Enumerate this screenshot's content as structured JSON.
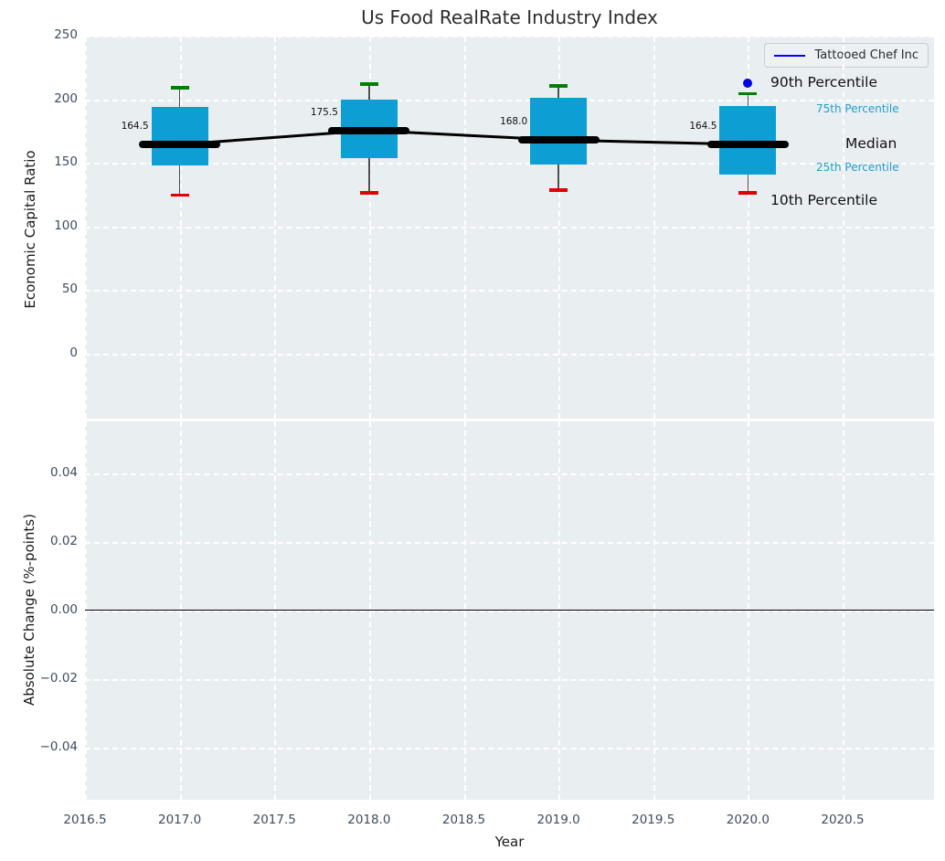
{
  "title": "Us Food RealRate Industry Index",
  "legend": {
    "label": "Tattooed Chef Inc",
    "line_color": "#0000ff"
  },
  "colors": {
    "box_fill": "#0d9ed4",
    "cap_top": "#008000",
    "cap_bottom": "#e00000",
    "whisker": "#4f4f4f",
    "median": "#000000",
    "series_line": "#000000",
    "highlight_point": "#0000e0",
    "percentile_text": "#1e9fce",
    "plot_background": "#e9eef1",
    "grid": "#ffffff",
    "tick_text": "#3e4b60"
  },
  "chart_data": [
    {
      "type": "boxplot+line",
      "title": "Us Food RealRate Industry Index",
      "xlabel": "Year",
      "ylabel": "Economic Capital Ratio",
      "series_name": "Tattooed Chef Inc",
      "legend_position": "upper right",
      "grid": true,
      "xlim": [
        2016.5,
        2021.0
      ],
      "ylim": [
        -49,
        252
      ],
      "xticks": [
        "2016.5",
        "2017.0",
        "2017.5",
        "2018.0",
        "2018.5",
        "2019.0",
        "2019.5",
        "2020.0",
        "2020.5"
      ],
      "xtick_values": [
        2016.5,
        2017.0,
        2017.5,
        2018.0,
        2018.5,
        2019.0,
        2019.5,
        2020.0,
        2020.5
      ],
      "yticks": [
        "0",
        "50",
        "100",
        "150",
        "200",
        "250"
      ],
      "ytick_values": [
        0,
        50,
        100,
        150,
        200,
        250
      ],
      "boxes": [
        {
          "year": 2017,
          "p10": 124.5,
          "q25": 148,
          "median": 164.5,
          "q75": 194,
          "p90": 209,
          "label": "164.5"
        },
        {
          "year": 2018,
          "p10": 126.5,
          "q25": 153.5,
          "median": 175.5,
          "q75": 200,
          "p90": 212,
          "label": "175.5"
        },
        {
          "year": 2019,
          "p10": 128.5,
          "q25": 149,
          "median": 168.0,
          "q75": 201,
          "p90": 210.5,
          "label": "168.0"
        },
        {
          "year": 2020,
          "p10": 126.5,
          "q25": 141,
          "median": 164.5,
          "q75": 195,
          "p90": 204.5,
          "label": "164.5"
        }
      ],
      "median_line": {
        "x": [
          2017,
          2018,
          2019,
          2020
        ],
        "y": [
          164.5,
          175.5,
          168.0,
          164.5
        ]
      },
      "highlight_point": {
        "x": 2020,
        "y": 213
      },
      "annotations": [
        {
          "id": "p90",
          "text": "90th Percentile",
          "style": "large"
        },
        {
          "id": "q75",
          "text": "75th Percentile",
          "style": "small"
        },
        {
          "id": "median",
          "text": "Median",
          "style": "large"
        },
        {
          "id": "q25",
          "text": "25th Percentile",
          "style": "small"
        },
        {
          "id": "p10",
          "text": "10th Percentile",
          "style": "large"
        }
      ]
    },
    {
      "type": "line",
      "xlabel": "Year",
      "ylabel": "Absolute Change (%-points)",
      "grid": true,
      "xlim": [
        2016.5,
        2021.0
      ],
      "ylim": [
        -0.056,
        0.0552
      ],
      "yticks": [
        "0.04",
        "0.02",
        "0.00",
        "−0.02",
        "−0.04"
      ],
      "ytick_values": [
        0.04,
        0.02,
        0.0,
        -0.02,
        -0.04
      ],
      "zero_line": 0.0,
      "series": []
    }
  ]
}
